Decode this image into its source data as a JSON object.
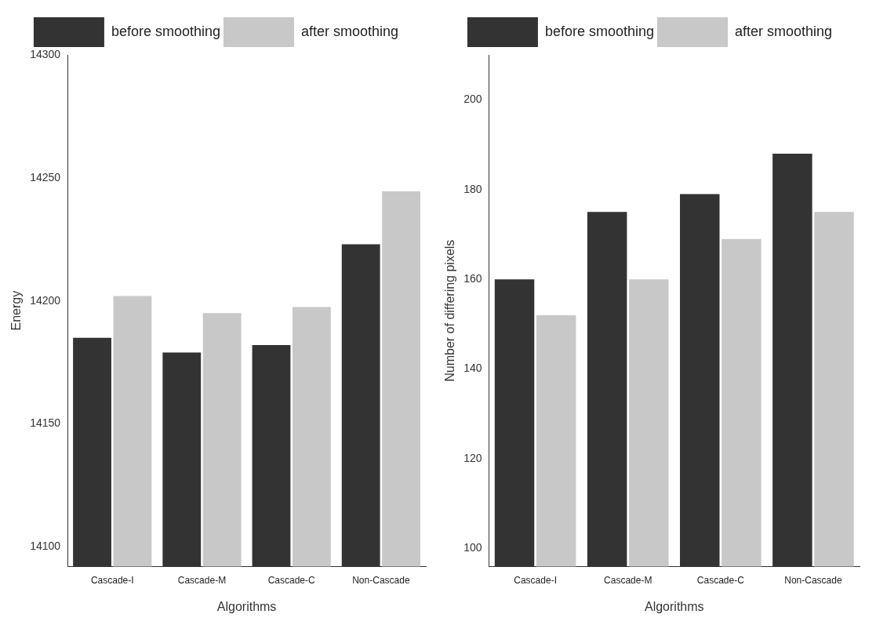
{
  "chart_data": [
    {
      "type": "bar",
      "xlabel": "Algorithms",
      "ylabel": "Energy",
      "categories": [
        "Cascade-I",
        "Cascade-M",
        "Cascade-C",
        "Non-Cascade"
      ],
      "series": [
        {
          "name": "before smoothing",
          "color": "#333333",
          "values": [
            14185,
            14179,
            14182,
            14223
          ]
        },
        {
          "name": "after smoothing",
          "color": "#c8c8c8",
          "values": [
            14202,
            14195,
            14197.5,
            14244.5
          ]
        }
      ],
      "ylim": [
        14092,
        14300
      ],
      "yticks": [
        14100,
        14150,
        14200,
        14250,
        14300
      ],
      "grid": false,
      "legend": "top"
    },
    {
      "type": "bar",
      "xlabel": "Algorithms",
      "ylabel": "Number of differing pixels",
      "categories": [
        "Cascade-I",
        "Cascade-M",
        "Cascade-C",
        "Non-Cascade"
      ],
      "series": [
        {
          "name": "before smoothing",
          "color": "#333333",
          "values": [
            160,
            175,
            179,
            188
          ]
        },
        {
          "name": "after smoothing",
          "color": "#c8c8c8",
          "values": [
            152,
            160,
            169,
            175
          ]
        }
      ],
      "ylim": [
        96,
        210
      ],
      "yticks": [
        100,
        120,
        140,
        160,
        180,
        200
      ],
      "grid": false,
      "legend": "top"
    }
  ]
}
